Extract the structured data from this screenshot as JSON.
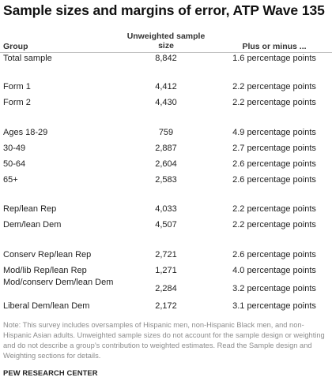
{
  "title": "Sample sizes and margins of error, ATP Wave 135",
  "headers": {
    "group": "Group",
    "sample_size": "Unweighted sample size",
    "moe": "Plus or minus ..."
  },
  "rows": [
    {
      "group": "Total sample",
      "size": "8,842",
      "moe": "1.6 percentage points"
    },
    {
      "group": "Form 1",
      "size": "4,412",
      "moe": "2.2 percentage points"
    },
    {
      "group": "Form 2",
      "size": "4,430",
      "moe": "2.2 percentage points"
    },
    {
      "group": "Ages 18-29",
      "size": "759",
      "moe": "4.9 percentage points"
    },
    {
      "group": "30-49",
      "size": "2,887",
      "moe": "2.7 percentage points"
    },
    {
      "group": "50-64",
      "size": "2,604",
      "moe": "2.6 percentage points"
    },
    {
      "group": "65+",
      "size": "2,583",
      "moe": "2.6 percentage points"
    },
    {
      "group": "Rep/lean Rep",
      "size": "4,033",
      "moe": "2.2 percentage points"
    },
    {
      "group": "Dem/lean Dem",
      "size": "4,507",
      "moe": "2.2 percentage points"
    },
    {
      "group": "Conserv Rep/lean Rep",
      "size": "2,721",
      "moe": "2.6 percentage points"
    },
    {
      "group": "Mod/lib Rep/lean Rep",
      "size": "1,271",
      "moe": "4.0 percentage points"
    },
    {
      "group": "Mod/conserv Dem/lean Dem",
      "size": "2,284",
      "moe": "3.2 percentage points"
    },
    {
      "group": "Liberal Dem/lean Dem",
      "size": "2,172",
      "moe": "3.1 percentage points"
    }
  ],
  "note": "Note: This survey includes oversamples of Hispanic men, non-Hispanic Black men, and non-Hispanic Asian adults. Unweighted sample sizes do not account for the sample design or weighting and do not describe a group’s contribution to weighted estimates. Read the Sample design and Weighting sections for details.",
  "source": "PEW RESEARCH CENTER"
}
